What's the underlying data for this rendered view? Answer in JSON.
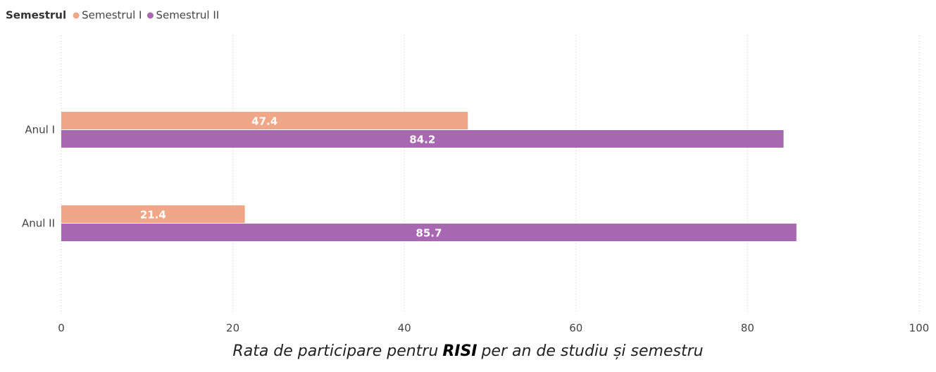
{
  "chart_data": {
    "type": "bar",
    "orientation": "horizontal",
    "title": [
      "Rata de participare pentru",
      "RISI",
      "per an de studiu și semestru"
    ],
    "legend_title": "Semestrul",
    "categories": [
      "Anul I",
      "Anul II"
    ],
    "series": [
      {
        "name": "Semestrul I",
        "color": "#f0a787",
        "values": [
          47.4,
          21.4
        ]
      },
      {
        "name": "Semestrul II",
        "color": "#a767b1",
        "values": [
          84.2,
          85.7
        ]
      }
    ],
    "xlim": [
      0,
      100
    ],
    "xticks": [
      0,
      20,
      40,
      60,
      80,
      100
    ],
    "grid": true,
    "legend": "top-left"
  }
}
